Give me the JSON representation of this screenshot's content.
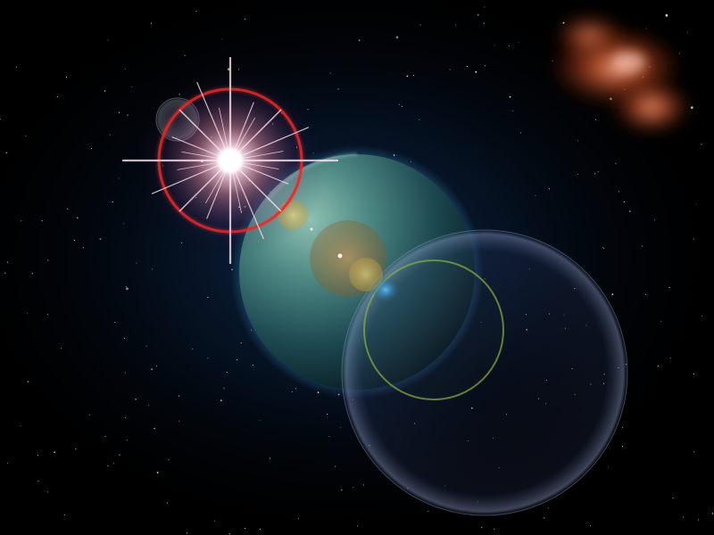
{
  "scene": {
    "description_free": true,
    "colors": {
      "space": "#000000",
      "space_glow": "#0d2a4a",
      "planet_light": "#6fa69a",
      "planet_dark": "#0b2a33",
      "nebula": "#c8552a",
      "nebula_core": "#ff9a7a",
      "sun_core": "#ffffff",
      "sun_glow": "#ffb0c8",
      "ring_red": "#e02020",
      "ring_green": "#7fa040",
      "flare_yellow": "#e8d070",
      "flare_orange": "#b08040",
      "flare_blue": "#40a0e0",
      "bubble": "#8a9ac8"
    },
    "elements": [
      {
        "name": "starfield",
        "icon": "stars-icon"
      },
      {
        "name": "sun",
        "icon": "star-burst-icon"
      },
      {
        "name": "planet",
        "icon": "planet-icon"
      },
      {
        "name": "nebula",
        "icon": "nebula-icon"
      },
      {
        "name": "lens-flare",
        "icon": "lens-flare-icon"
      }
    ]
  }
}
